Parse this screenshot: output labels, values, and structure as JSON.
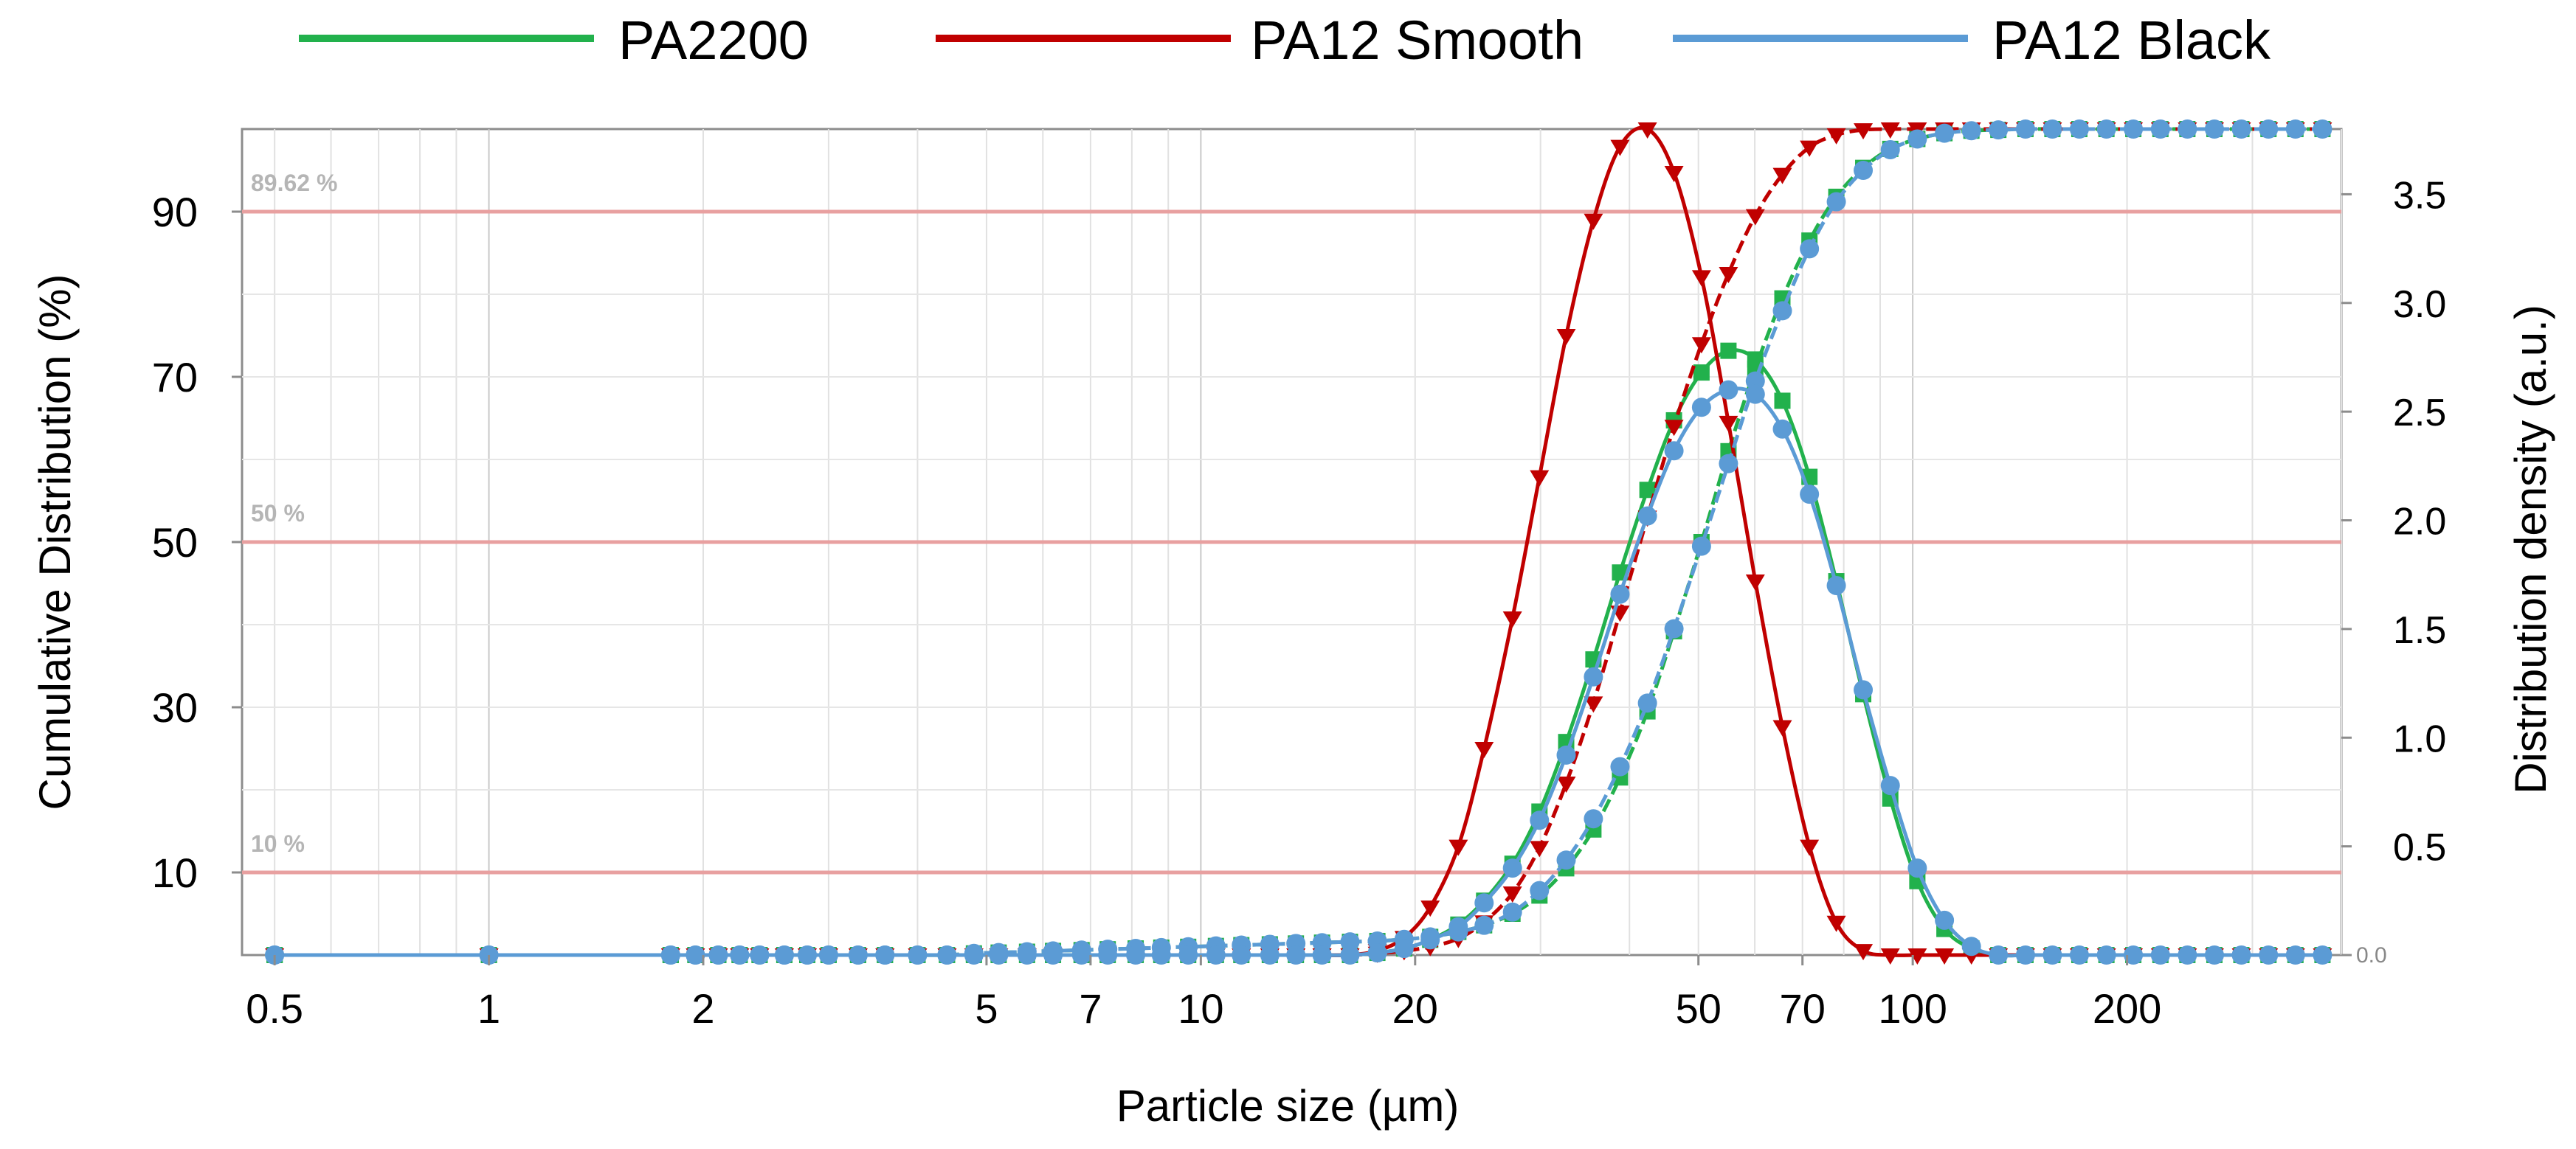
{
  "chart_data": {
    "type": "line",
    "xlabel": "Particle size (µm)",
    "ylabel_left": "Cumulative Distribution (%)",
    "ylabel_right": "Distribution density (a.u.)",
    "x_scale": "log",
    "xlim": [
      0.45,
      400
    ],
    "ylim_left": [
      0,
      100
    ],
    "ylim_right": [
      0,
      3.8
    ],
    "x_ticks": [
      {
        "value": 0.5,
        "label": "0.5"
      },
      {
        "value": 1,
        "label": "1"
      },
      {
        "value": 2,
        "label": "2"
      },
      {
        "value": 5,
        "label": "5"
      },
      {
        "value": 7,
        "label": "7"
      },
      {
        "value": 10,
        "label": "10"
      },
      {
        "value": 20,
        "label": "20"
      },
      {
        "value": 50,
        "label": "50"
      },
      {
        "value": 70,
        "label": "70"
      },
      {
        "value": 100,
        "label": "100"
      },
      {
        "value": 200,
        "label": "200"
      }
    ],
    "y_ticks_left": [
      {
        "value": 10,
        "label": "10"
      },
      {
        "value": 30,
        "label": "30"
      },
      {
        "value": 50,
        "label": "50"
      },
      {
        "value": 70,
        "label": "70"
      },
      {
        "value": 90,
        "label": "90"
      }
    ],
    "y_ticks_right": [
      {
        "value": 0.0,
        "label": "0.0"
      },
      {
        "value": 0.5,
        "label": "0.5"
      },
      {
        "value": 1.0,
        "label": "1.0"
      },
      {
        "value": 1.5,
        "label": "1.5"
      },
      {
        "value": 2.0,
        "label": "2.0"
      },
      {
        "value": 2.5,
        "label": "2.5"
      },
      {
        "value": 3.0,
        "label": "3.0"
      },
      {
        "value": 3.5,
        "label": "3.5"
      }
    ],
    "reference_lines": [
      {
        "value": 10,
        "label": "10 %"
      },
      {
        "value": 50,
        "label": "50 %"
      },
      {
        "value": 89.62,
        "label": "89.62 %"
      }
    ],
    "legend": [
      {
        "name": "PA2200",
        "color": "#22b14c"
      },
      {
        "name": "PA12 Smooth",
        "color": "#c00000"
      },
      {
        "name": "PA12 Black",
        "color": "#5b9bd5"
      }
    ],
    "x_samples": [
      0.5,
      1.0,
      1.8,
      1.95,
      2.1,
      2.25,
      2.4,
      2.6,
      2.8,
      3.0,
      3.3,
      3.6,
      4.0,
      4.4,
      4.8,
      5.2,
      5.7,
      6.2,
      6.8,
      7.4,
      8.1,
      8.8,
      9.6,
      10.5,
      11.4,
      12.5,
      13.6,
      14.8,
      16.2,
      17.7,
      19.3,
      21.0,
      23.0,
      25.0,
      27.4,
      29.9,
      32.6,
      35.6,
      38.8,
      42.4,
      46.2,
      50.5,
      55.1,
      60.1,
      65.6,
      71.6,
      78.1,
      85.2,
      93.0,
      101.5,
      110.8,
      120.9,
      131.9,
      144.0,
      157.1,
      171.4,
      187.1,
      204.1,
      222.8,
      243.1,
      265.3,
      289.5,
      316.0,
      344.8,
      376.3
    ],
    "series": [
      {
        "name": "PA2200",
        "color": "#22b14c",
        "cumulative": [
          0,
          0,
          0,
          0,
          0,
          0,
          0,
          0,
          0,
          0,
          0,
          0,
          0,
          0,
          0.2,
          0.3,
          0.4,
          0.5,
          0.6,
          0.7,
          0.8,
          0.9,
          1.0,
          1.1,
          1.2,
          1.3,
          1.4,
          1.5,
          1.6,
          1.7,
          1.9,
          2.2,
          2.8,
          3.6,
          5.0,
          7.2,
          10.5,
          15.2,
          21.5,
          29.5,
          39.2,
          50.0,
          61.0,
          71.0,
          79.5,
          86.5,
          91.8,
          95.3,
          97.6,
          98.8,
          99.5,
          99.8,
          99.9,
          100,
          100,
          100,
          100,
          100,
          100,
          100,
          100,
          100,
          100,
          100,
          100
        ],
        "density": [
          0,
          0,
          0,
          0,
          0,
          0,
          0,
          0,
          0,
          0,
          0,
          0,
          0,
          0,
          0,
          0,
          0,
          0,
          0,
          0,
          0,
          0,
          0,
          0,
          0,
          0,
          0,
          0,
          0,
          0.01,
          0.03,
          0.07,
          0.14,
          0.25,
          0.42,
          0.66,
          0.98,
          1.36,
          1.76,
          2.14,
          2.46,
          2.68,
          2.78,
          2.74,
          2.55,
          2.2,
          1.72,
          1.2,
          0.72,
          0.34,
          0.12,
          0.03,
          0,
          0,
          0,
          0,
          0,
          0,
          0,
          0,
          0,
          0,
          0,
          0,
          0
        ]
      },
      {
        "name": "PA12 Smooth",
        "color": "#c00000",
        "cumulative": [
          0,
          0,
          0,
          0,
          0,
          0,
          0,
          0,
          0,
          0,
          0,
          0,
          0,
          0,
          0,
          0,
          0,
          0,
          0,
          0,
          0,
          0,
          0,
          0,
          0,
          0,
          0,
          0,
          0,
          0.2,
          0.5,
          1.0,
          2.0,
          4.0,
          7.5,
          13.0,
          20.8,
          30.5,
          41.5,
          53.0,
          64.0,
          74.0,
          82.5,
          89.5,
          94.5,
          97.8,
          99.3,
          99.9,
          100,
          100,
          100,
          100,
          100,
          100,
          100,
          100,
          100,
          100,
          100,
          100,
          100,
          100,
          100,
          100,
          100
        ],
        "density": [
          0,
          0,
          0,
          0,
          0,
          0,
          0,
          0,
          0,
          0,
          0,
          0,
          0,
          0,
          0,
          0,
          0,
          0,
          0,
          0,
          0,
          0,
          0,
          0,
          0,
          0,
          0,
          0,
          0,
          0.02,
          0.08,
          0.22,
          0.5,
          0.95,
          1.55,
          2.2,
          2.85,
          3.38,
          3.72,
          3.8,
          3.6,
          3.12,
          2.45,
          1.72,
          1.05,
          0.5,
          0.15,
          0.02,
          0,
          0,
          0,
          0,
          0,
          0,
          0,
          0,
          0,
          0,
          0,
          0,
          0,
          0,
          0,
          0,
          0
        ]
      },
      {
        "name": "PA12 Black",
        "color": "#5b9bd5",
        "cumulative": [
          0,
          0,
          0,
          0,
          0,
          0,
          0,
          0,
          0,
          0,
          0,
          0,
          0,
          0,
          0.2,
          0.3,
          0.4,
          0.5,
          0.6,
          0.7,
          0.8,
          0.9,
          1.0,
          1.1,
          1.2,
          1.3,
          1.4,
          1.5,
          1.6,
          1.7,
          1.9,
          2.2,
          2.8,
          3.6,
          5.2,
          7.8,
          11.5,
          16.5,
          22.8,
          30.5,
          39.5,
          49.5,
          59.5,
          69.5,
          78.0,
          85.5,
          91.2,
          95.0,
          97.5,
          98.8,
          99.5,
          99.8,
          99.9,
          100,
          100,
          100,
          100,
          100,
          100,
          100,
          100,
          100,
          100,
          100,
          100
        ],
        "density": [
          0,
          0,
          0,
          0,
          0,
          0,
          0,
          0,
          0,
          0,
          0,
          0,
          0,
          0,
          0,
          0,
          0,
          0,
          0,
          0,
          0,
          0,
          0,
          0,
          0,
          0,
          0,
          0,
          0,
          0.01,
          0.03,
          0.07,
          0.13,
          0.24,
          0.4,
          0.62,
          0.92,
          1.28,
          1.66,
          2.02,
          2.32,
          2.52,
          2.6,
          2.58,
          2.42,
          2.12,
          1.7,
          1.22,
          0.78,
          0.4,
          0.16,
          0.04,
          0,
          0,
          0,
          0,
          0,
          0,
          0,
          0,
          0,
          0,
          0,
          0,
          0
        ]
      }
    ]
  }
}
